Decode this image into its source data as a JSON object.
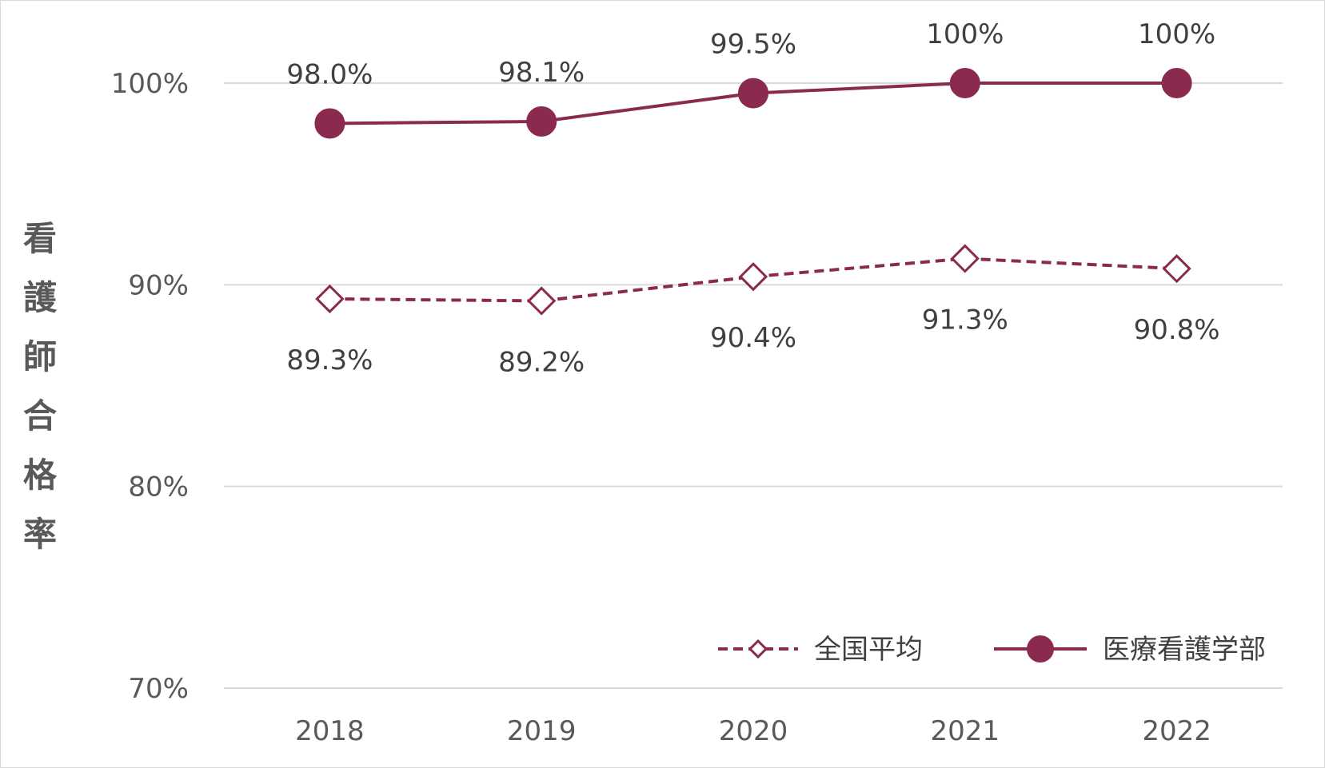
{
  "chart_data": {
    "type": "line",
    "title": "",
    "xlabel": "",
    "ylabel": "看護師合格率",
    "categories": [
      "2018",
      "2019",
      "2020",
      "2021",
      "2022"
    ],
    "y_ticks": [
      "70%",
      "80%",
      "90%",
      "100%"
    ],
    "ylim": [
      70,
      100
    ],
    "grid": true,
    "legend_position": "bottom-right",
    "series": [
      {
        "name": "全国平均",
        "values": [
          89.3,
          89.2,
          90.4,
          91.3,
          90.8
        ],
        "labels": [
          "89.3%",
          "89.2%",
          "90.4%",
          "91.3%",
          "90.8%"
        ],
        "color": "#8b2a4f",
        "line_style": "dashed",
        "marker": "hollow-diamond"
      },
      {
        "name": "医療看護学部",
        "values": [
          98.0,
          98.1,
          99.5,
          100,
          100
        ],
        "labels": [
          "98.0%",
          "98.1%",
          "99.5%",
          "100%",
          "100%"
        ],
        "color": "#8b2a4f",
        "line_style": "solid",
        "marker": "filled-circle"
      }
    ]
  }
}
